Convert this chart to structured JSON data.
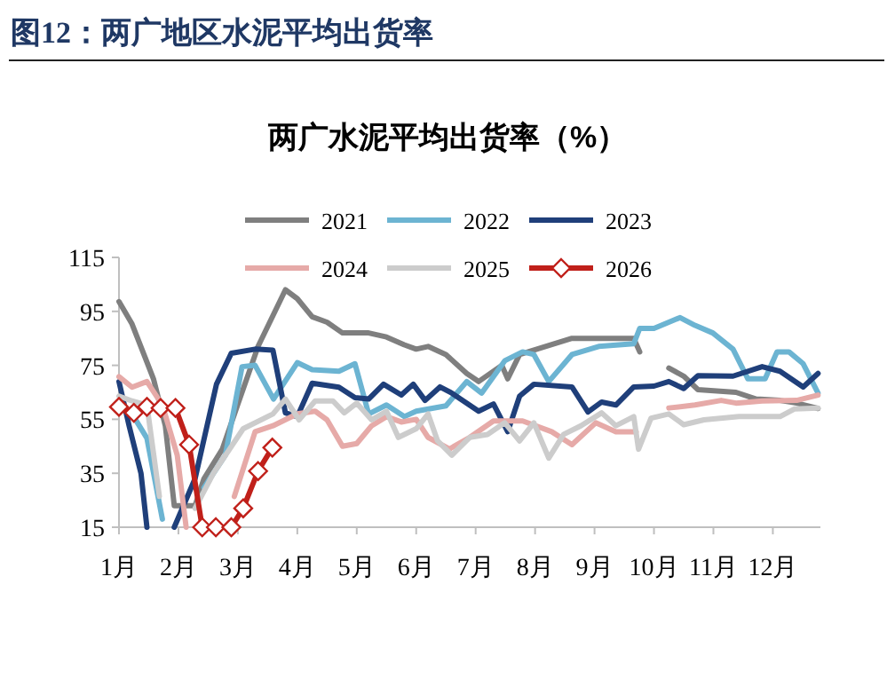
{
  "chart_data": {
    "type": "line",
    "title": "两广水泥平均出货率（%）",
    "annotations": [
      "图12：两广地区水泥平均出货率"
    ],
    "xlim": [
      1,
      12.8
    ],
    "xticks": [
      {
        "value": 1,
        "label": "1月"
      },
      {
        "value": 2,
        "label": "2月"
      },
      {
        "value": 3,
        "label": "3月"
      },
      {
        "value": 4,
        "label": "4月"
      },
      {
        "value": 5,
        "label": "5月"
      },
      {
        "value": 6,
        "label": "6月"
      },
      {
        "value": 7,
        "label": "7月"
      },
      {
        "value": 8,
        "label": "8月"
      },
      {
        "value": 9,
        "label": "9月"
      },
      {
        "value": 10,
        "label": "10月"
      },
      {
        "value": 11,
        "label": "11月"
      },
      {
        "value": 12,
        "label": "12月"
      }
    ],
    "ylim": [
      15,
      115
    ],
    "yticks": [
      15,
      35,
      55,
      75,
      95,
      115
    ],
    "legend": "top",
    "grid": false,
    "series": [
      {
        "name": "2021",
        "color": "#7f7f7f",
        "marker": "none",
        "x": [
          1,
          1.22,
          1.42,
          1.58,
          1.78,
          1.93,
          2.28,
          2.43,
          2.74,
          2.99,
          3.34,
          3.8,
          4.0,
          4.25,
          4.5,
          4.76,
          5.2,
          5.5,
          5.8,
          6.0,
          6.2,
          6.5,
          6.85,
          7.05,
          7.44,
          7.54,
          7.74,
          8.62,
          9.66,
          9.76,
          10.0,
          10.25,
          10.5,
          10.74,
          11.38,
          11.72,
          12.12,
          12.4,
          12.76
        ],
        "values": [
          98.6,
          90.3,
          79,
          70,
          52.6,
          23,
          23,
          33,
          44,
          60,
          82,
          103,
          99.7,
          93,
          91,
          87,
          87,
          85.5,
          82.6,
          81,
          82,
          79,
          72,
          69,
          75,
          70,
          79,
          85,
          85,
          80,
          null,
          74,
          71,
          66,
          65,
          62.5,
          62,
          61,
          59
        ]
      },
      {
        "name": "2022",
        "color": "#6cb4d2",
        "marker": "none",
        "x": [
          1,
          1.22,
          1.47,
          1.73,
          2.1,
          2.43,
          2.79,
          3.07,
          3.29,
          3.6,
          4.0,
          4.25,
          4.7,
          4.97,
          5.2,
          5.5,
          5.8,
          6.0,
          6.5,
          6.85,
          7.1,
          7.49,
          7.79,
          7.98,
          8.23,
          8.62,
          9.07,
          9.66,
          9.76,
          10.0,
          10.25,
          10.44,
          10.69,
          10.99,
          11.33,
          11.58,
          11.87,
          12.07,
          12.27,
          12.51,
          12.76
        ],
        "values": [
          60.3,
          57,
          48,
          18,
          null,
          29.7,
          41.7,
          74.5,
          75,
          62.5,
          76,
          73.4,
          72.8,
          75.6,
          57,
          60.3,
          56,
          58,
          60,
          69,
          64.7,
          76.7,
          80,
          79,
          69,
          79,
          82,
          83,
          88.7,
          88.7,
          91,
          92.7,
          89.8,
          87,
          81,
          70,
          70,
          80,
          80,
          75.6,
          64.7
        ]
      },
      {
        "name": "2023",
        "color": "#1f3f7a",
        "marker": "none",
        "x": [
          1,
          1.17,
          1.37,
          1.47,
          1.7,
          1.93,
          2.28,
          2.64,
          2.89,
          3.29,
          3.59,
          3.8,
          4.0,
          4.25,
          4.7,
          4.97,
          5.2,
          5.45,
          5.75,
          5.95,
          6.15,
          6.4,
          6.6,
          7.05,
          7.3,
          7.54,
          7.74,
          7.98,
          8.62,
          8.89,
          9.12,
          9.36,
          9.66,
          10.0,
          10.25,
          10.5,
          10.74,
          11.33,
          11.82,
          12.12,
          12.51,
          12.76
        ],
        "values": [
          69,
          52.6,
          35,
          15,
          null,
          15,
          33,
          68,
          79.5,
          81,
          80.6,
          57.4,
          56,
          68.4,
          66.9,
          63,
          62.5,
          68,
          64,
          68,
          62,
          67,
          64.7,
          58,
          60.7,
          50.4,
          63.6,
          68,
          67,
          57.7,
          61.4,
          60.3,
          67,
          67.3,
          69,
          66.4,
          71.2,
          71,
          74.5,
          72.8,
          67,
          72
        ]
      },
      {
        "name": "2024",
        "color": "#e6aaa8",
        "marker": "none",
        "x": [
          1,
          1.22,
          1.47,
          1.73,
          1.98,
          2.13,
          2.6,
          2.94,
          3.29,
          3.59,
          4.0,
          4.3,
          4.5,
          4.76,
          5.0,
          5.25,
          5.5,
          5.75,
          6.0,
          6.2,
          6.56,
          6.9,
          7.3,
          7.79,
          8.28,
          8.62,
          9.02,
          9.36,
          9.7,
          10.0,
          10.25,
          10.69,
          11.13,
          11.38,
          11.82,
          12.4,
          12.76
        ],
        "values": [
          70.8,
          66.9,
          69,
          60.3,
          41.7,
          15,
          null,
          26.4,
          50.4,
          52.6,
          57,
          58,
          54.8,
          45,
          46,
          52.6,
          56,
          54,
          55,
          48.3,
          44,
          48.3,
          54.4,
          54.4,
          50.4,
          45.6,
          53.7,
          50.4,
          50.4,
          null,
          59.2,
          60.3,
          62,
          61,
          61.8,
          62,
          64
        ]
      },
      {
        "name": "2025",
        "color": "#cccccc",
        "marker": "none",
        "x": [
          1,
          1.22,
          1.47,
          1.68,
          2.0,
          2.28,
          2.59,
          3.09,
          3.59,
          3.8,
          4.03,
          4.3,
          4.6,
          4.79,
          5.0,
          5.25,
          5.5,
          5.7,
          6.0,
          6.2,
          6.36,
          6.6,
          6.9,
          7.2,
          7.49,
          7.74,
          7.98,
          8.23,
          8.48,
          8.77,
          9.12,
          9.36,
          9.66,
          9.74,
          9.95,
          10.25,
          10.5,
          10.84,
          11.43,
          12.12,
          12.36,
          12.76
        ],
        "values": [
          63.6,
          61.8,
          60.3,
          26.4,
          null,
          22,
          35,
          51.5,
          57,
          62.5,
          54.8,
          61.8,
          61.8,
          57.4,
          61,
          54.8,
          58,
          48.3,
          51.5,
          57,
          47,
          41.7,
          48.3,
          49.4,
          53.7,
          47,
          53.7,
          40.6,
          49.4,
          52.6,
          57.4,
          52.6,
          56,
          43.9,
          55.4,
          57,
          53,
          54.8,
          56,
          56,
          58.8,
          59.2
        ]
      },
      {
        "name": "2026",
        "color": "#c0201a",
        "marker": "diamond",
        "x": [
          1,
          1.25,
          1.47,
          1.7,
          1.95,
          2.18,
          2.4,
          2.63,
          2.89,
          3.09,
          3.34,
          3.58
        ],
        "values": [
          59.6,
          57.4,
          59.6,
          59.2,
          59.2,
          45.6,
          15,
          15,
          15,
          22,
          35.8,
          44.5
        ]
      }
    ]
  }
}
